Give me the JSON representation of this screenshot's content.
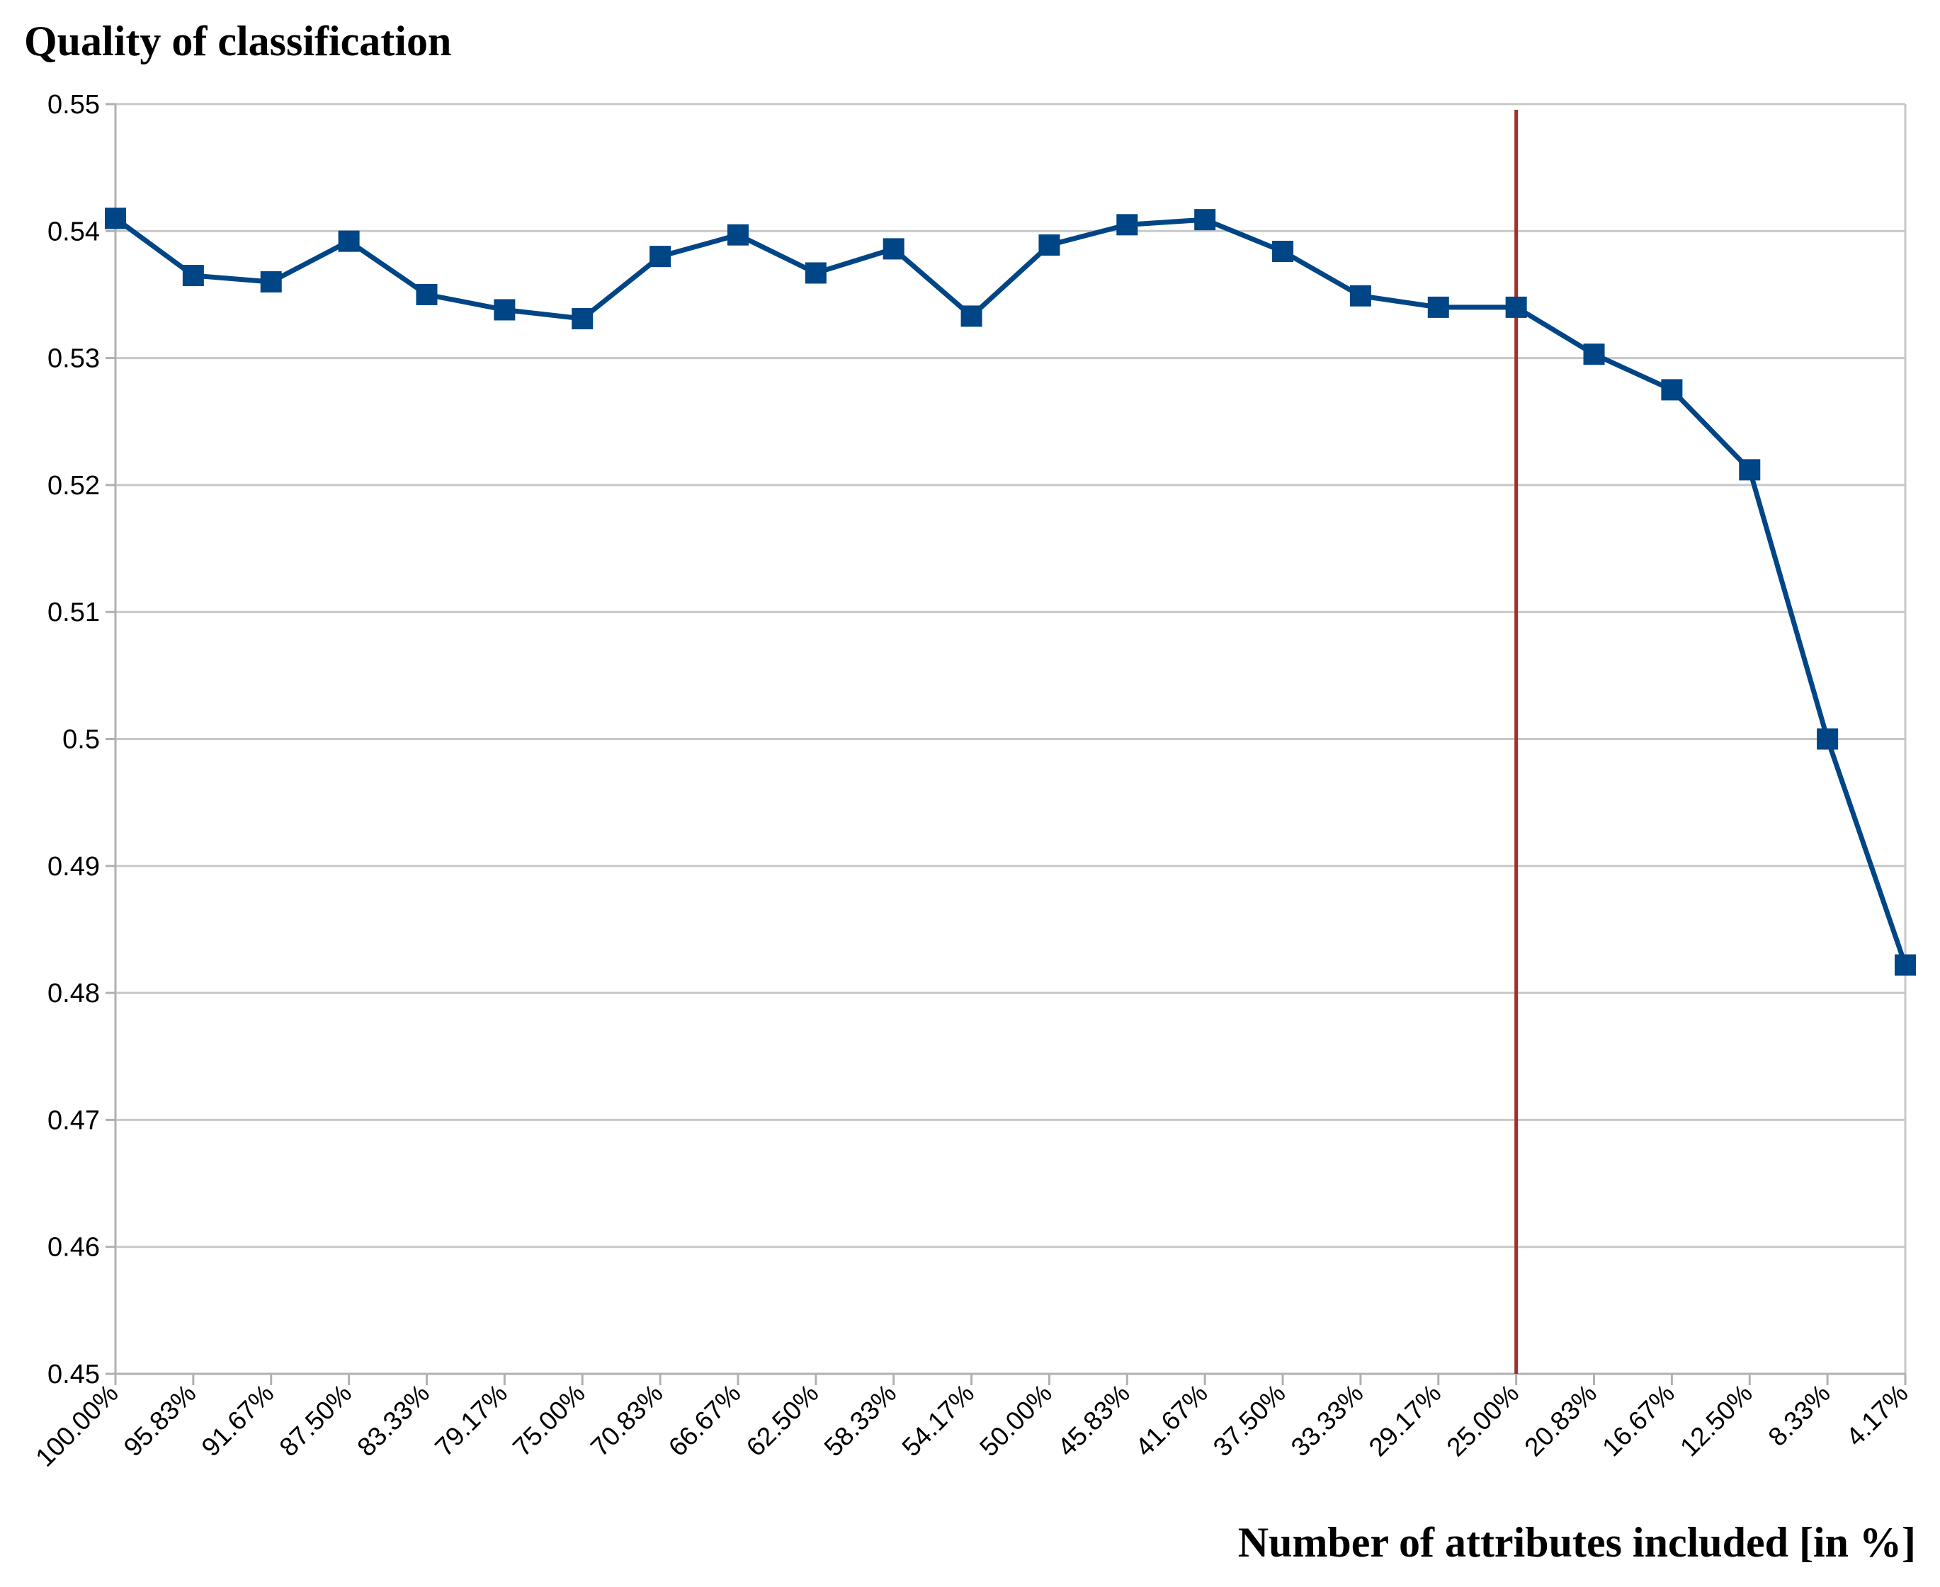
{
  "chart_data": {
    "type": "line",
    "title": "",
    "ylabel": "Quality of classification",
    "xlabel": "Number of attributes included [in %]",
    "ylim": [
      0.45,
      0.55
    ],
    "yticks": [
      0.45,
      0.46,
      0.47,
      0.48,
      0.49,
      0.5,
      0.51,
      0.52,
      0.53,
      0.54,
      0.55
    ],
    "ytick_labels": [
      "0.45",
      "0.46",
      "0.47",
      "0.48",
      "0.49",
      "0.5",
      "0.51",
      "0.52",
      "0.53",
      "0.54",
      "0.55"
    ],
    "grid": true,
    "categories": [
      "100.00%",
      "95.83%",
      "91.67%",
      "87.50%",
      "83.33%",
      "79.17%",
      "75.00%",
      "70.83%",
      "66.67%",
      "62.50%",
      "58.33%",
      "54.17%",
      "50.00%",
      "45.83%",
      "41.67%",
      "37.50%",
      "33.33%",
      "29.17%",
      "25.00%",
      "20.83%",
      "16.67%",
      "12.50%",
      "8.33%",
      "4.17%"
    ],
    "series": [
      {
        "name": "Quality of classification",
        "color": "#004586",
        "marker": "square",
        "values": [
          0.541,
          0.5365,
          0.536,
          0.5392,
          0.535,
          0.5338,
          0.5331,
          0.538,
          0.5397,
          0.5367,
          0.5386,
          0.5333,
          0.5389,
          0.5405,
          0.5409,
          0.5384,
          0.5349,
          0.534,
          0.534,
          0.5303,
          0.5275,
          0.5212,
          0.5,
          0.4822
        ]
      }
    ],
    "reference_line": {
      "orientation": "vertical",
      "at_category": "25.00%",
      "color": "#a0302e"
    }
  }
}
